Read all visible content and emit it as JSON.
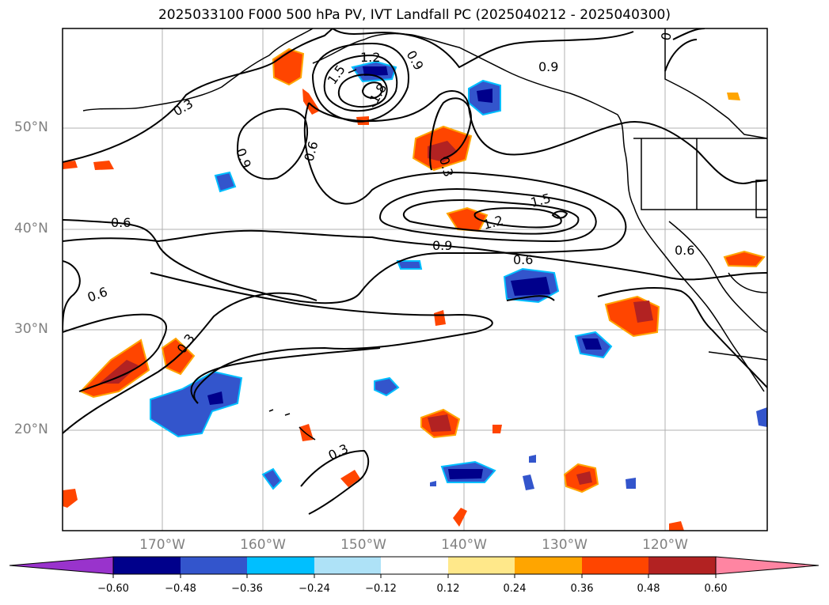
{
  "title": "2025033100 F000 500 hPa PV, IVT Landfall PC (2025040212 - 2025040300)",
  "map": {
    "lat_labels": [
      "50°N",
      "40°N",
      "30°N",
      "20°N"
    ],
    "lon_labels": [
      "170°W",
      "160°W",
      "150°W",
      "140°W",
      "130°W",
      "120°W"
    ],
    "contour_labels": [
      "1.2",
      "1.5",
      "1.8",
      "0.9",
      "0.6",
      "0.3",
      "0.6",
      "0.9",
      "0.3",
      "0.6",
      "0.6",
      "0.3",
      "0.9",
      "1.5",
      "1.2",
      "0.9",
      "0.6",
      "0.3",
      "0.3",
      "0.3",
      "0"
    ],
    "land_color": "#000000",
    "grid": true
  },
  "colorbar": {
    "ticks": [
      "−0.60",
      "−0.48",
      "−0.36",
      "−0.24",
      "−0.12",
      "0.12",
      "0.24",
      "0.36",
      "0.48",
      "0.60"
    ],
    "colors": [
      "#9933cc",
      "#00008b",
      "#3355cc",
      "#00bfff",
      "#aee2f7",
      "#ffffff",
      "#ffe88a",
      "#ffa500",
      "#ff4500",
      "#b22222",
      "#ff85a2"
    ]
  }
}
